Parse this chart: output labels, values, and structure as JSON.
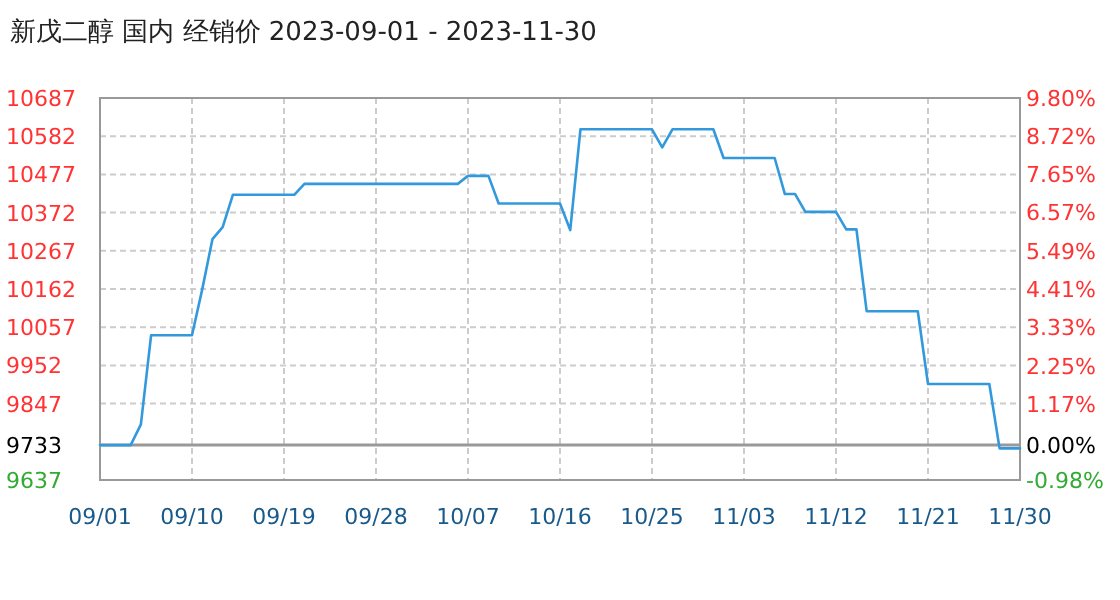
{
  "chart_data": {
    "type": "line",
    "title": "新戊二醇 国内 经销价 2023-09-01 - 2023-11-30",
    "x": [
      "2023-09-01",
      "2023-09-04",
      "2023-09-05",
      "2023-09-06",
      "2023-09-10",
      "2023-09-11",
      "2023-09-12",
      "2023-09-13",
      "2023-09-14",
      "2023-09-20",
      "2023-09-21",
      "2023-10-06",
      "2023-10-07",
      "2023-10-09",
      "2023-10-10",
      "2023-10-16",
      "2023-10-17",
      "2023-10-18",
      "2023-10-25",
      "2023-10-26",
      "2023-10-27",
      "2023-10-31",
      "2023-11-01",
      "2023-11-06",
      "2023-11-07",
      "2023-11-08",
      "2023-11-09",
      "2023-11-12",
      "2023-11-13",
      "2023-11-14",
      "2023-11-15",
      "2023-11-20",
      "2023-11-21",
      "2023-11-27",
      "2023-11-28",
      "2023-11-30"
    ],
    "series": [
      {
        "color": "#3399dd",
        "values": [
          9733,
          9733,
          9790,
          10035,
          10035,
          10161,
          10299,
          10332,
          10421,
          10421,
          10451,
          10451,
          10473,
          10473,
          10397,
          10397,
          10324,
          10601,
          10601,
          10551,
          10601,
          10601,
          10522,
          10522,
          10423,
          10423,
          10374,
          10374,
          10326,
          10326,
          10101,
          10101,
          9901,
          9901,
          9724,
          9724
        ]
      }
    ],
    "xlim": [
      "2023-09-01",
      "2023-11-30"
    ],
    "xticks": [
      {
        "value": "2023-09-01",
        "label": "09/01"
      },
      {
        "value": "2023-09-10",
        "label": "09/10"
      },
      {
        "value": "2023-09-19",
        "label": "09/19"
      },
      {
        "value": "2023-09-28",
        "label": "09/28"
      },
      {
        "value": "2023-10-07",
        "label": "10/07"
      },
      {
        "value": "2023-10-16",
        "label": "10/16"
      },
      {
        "value": "2023-10-25",
        "label": "10/25"
      },
      {
        "value": "2023-11-03",
        "label": "11/03"
      },
      {
        "value": "2023-11-12",
        "label": "11/12"
      },
      {
        "value": "2023-11-21",
        "label": "11/21"
      },
      {
        "value": "2023-11-30",
        "label": "11/30"
      }
    ],
    "ylim": [
      9637,
      10687
    ],
    "yticks": [
      9637,
      9733,
      9847,
      9952,
      10057,
      10162,
      10267,
      10372,
      10477,
      10582,
      10687
    ],
    "y2lim": [
      -0.98,
      9.8
    ],
    "y2ticks": [
      {
        "value": -0.98,
        "label": "-0.98%"
      },
      {
        "value": 0,
        "label": "0.00%"
      },
      {
        "value": 1.17,
        "label": "1.17%"
      },
      {
        "value": 2.25,
        "label": "2.25%"
      },
      {
        "value": 3.33,
        "label": "3.33%"
      },
      {
        "value": 4.41,
        "label": "4.41%"
      },
      {
        "value": 5.49,
        "label": "5.49%"
      },
      {
        "value": 6.57,
        "label": "6.57%"
      },
      {
        "value": 7.65,
        "label": "7.65%"
      },
      {
        "value": 8.72,
        "label": "8.72%"
      },
      {
        "value": 9.8,
        "label": "9.80%"
      }
    ],
    "ref_lines": [
      {
        "axis": "y",
        "value": 9733,
        "color": "#999999"
      }
    ],
    "grid": true,
    "line_style": "solid",
    "marker": "none"
  }
}
